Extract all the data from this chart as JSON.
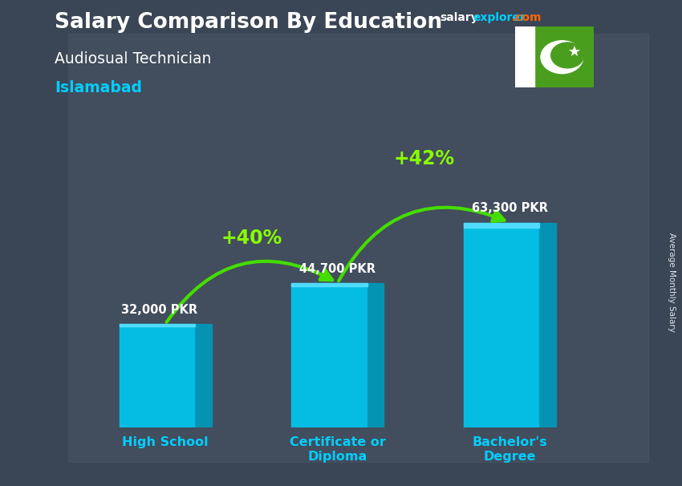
{
  "title": "Salary Comparison By Education",
  "subtitle": "Audiosual Technician",
  "location": "Islamabad",
  "ylabel": "Average Monthly Salary",
  "categories": [
    "High School",
    "Certificate or\nDiploma",
    "Bachelor's\nDegree"
  ],
  "values": [
    32000,
    44700,
    63300
  ],
  "value_labels": [
    "32,000 PKR",
    "44,700 PKR",
    "63,300 PKR"
  ],
  "pct_labels": [
    "+40%",
    "+42%"
  ],
  "bar_face_color": "#00c8f0",
  "bar_right_color": "#0099bb",
  "bar_top_color": "#55ddff",
  "bg_overlay_color": "#1a2535",
  "bg_overlay_alpha": 0.55,
  "title_color": "#ffffff",
  "subtitle_color": "#ffffff",
  "location_color": "#00cfff",
  "value_label_color": "#ffffff",
  "pct_color": "#88ff00",
  "arrow_color": "#44dd00",
  "xlabel_color": "#00cfff",
  "website_salary_color": "#ffffff",
  "website_explorer_color": "#00cfff",
  "website_com_color": "#ff6600",
  "flag_green": "#4a9e1e",
  "flag_white": "#ffffff",
  "bar_positions": [
    1.3,
    2.7,
    4.1
  ],
  "bar_width": 0.75,
  "xlim": [
    0.4,
    5.0
  ],
  "ylim": [
    0,
    90000
  ]
}
